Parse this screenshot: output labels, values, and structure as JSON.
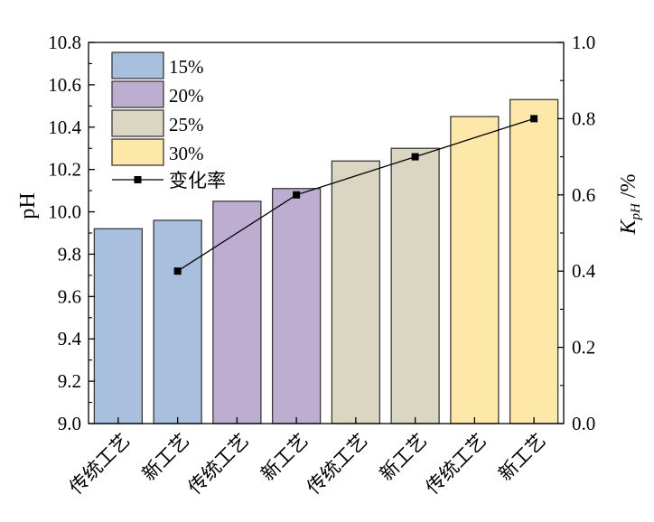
{
  "chart_data": {
    "type": "bar",
    "categories": [
      "传统工艺",
      "新工艺",
      "传统工艺",
      "新工艺",
      "传统工艺",
      "新工艺",
      "传统工艺",
      "新工艺"
    ],
    "groups": [
      {
        "name": "15%",
        "color": "#a8bfdd",
        "indices": [
          0,
          1
        ]
      },
      {
        "name": "20%",
        "color": "#bcadd1",
        "indices": [
          2,
          3
        ]
      },
      {
        "name": "25%",
        "color": "#dbd6c2",
        "indices": [
          4,
          5
        ]
      },
      {
        "name": "30%",
        "color": "#fde8a9",
        "indices": [
          6,
          7
        ]
      }
    ],
    "values": [
      9.92,
      9.96,
      10.05,
      10.11,
      10.24,
      10.3,
      10.45,
      10.53
    ],
    "line_series": {
      "name": "变化率",
      "points": [
        {
          "index": 1,
          "value": 0.4
        },
        {
          "index": 3,
          "value": 0.6
        },
        {
          "index": 5,
          "value": 0.7
        },
        {
          "index": 7,
          "value": 0.8
        }
      ]
    },
    "y_left": {
      "label": "pH",
      "ylim": [
        9.0,
        10.8
      ],
      "ticks": [
        "9.0",
        "9.2",
        "9.4",
        "9.6",
        "9.8",
        "10.0",
        "10.2",
        "10.4",
        "10.6",
        "10.8"
      ]
    },
    "y_right": {
      "label_main": "K",
      "label_sub": "pH",
      "label_suffix": " /%",
      "ylim": [
        0.0,
        1.0
      ],
      "ticks": [
        "0.0",
        "0.2",
        "0.4",
        "0.6",
        "0.8",
        "1.0"
      ]
    },
    "legend": {
      "position": "top-left",
      "entries": [
        "15%",
        "20%",
        "25%",
        "30%",
        "变化率"
      ]
    }
  }
}
